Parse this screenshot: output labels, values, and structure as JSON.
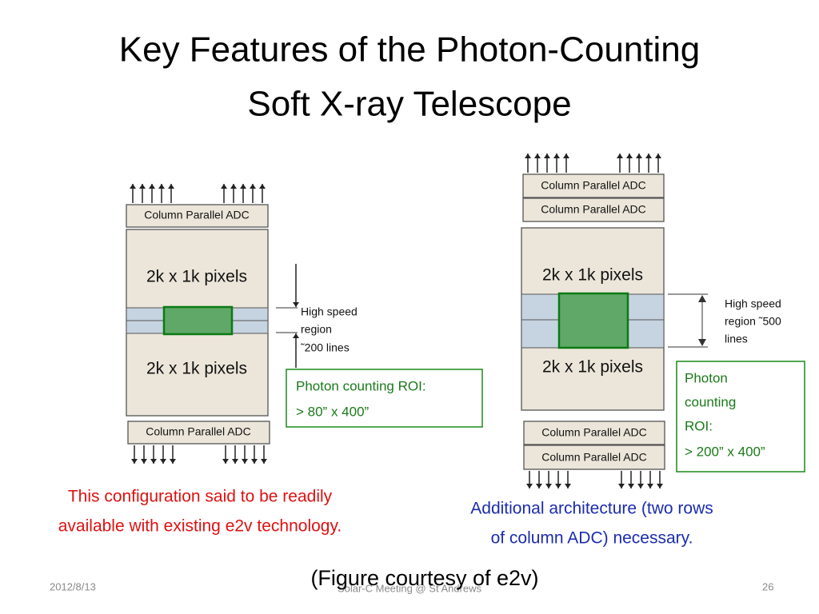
{
  "title": {
    "lines": [
      "Key Features of the Photon-Counting",
      "Soft X-ray Telescope"
    ]
  },
  "left_diagram": {
    "adc_top": "Column Parallel ADC",
    "pixels": [
      "2k x 1k pixels",
      "2k x 1k pixels"
    ],
    "adc_bottom": "Column Parallel ADC",
    "annotation": [
      "High speed",
      "region",
      "˜200 lines"
    ],
    "roi_box": [
      "Photon counting ROI:",
      "> 80” x 400”"
    ]
  },
  "right_diagram": {
    "adc_top": [
      "Column Parallel ADC",
      "Column Parallel ADC"
    ],
    "pixels": [
      "2k x 1k pixels",
      "2k x 1k pixels"
    ],
    "adc_bottom": [
      "Column Parallel ADC",
      "Column Parallel ADC"
    ],
    "annotation": [
      "High speed",
      "region ˜500",
      "lines"
    ],
    "roi_box": [
      "Photon",
      "counting",
      "ROI:",
      "> 200” x 400”"
    ]
  },
  "captions": {
    "left": [
      "This configuration said to be readily",
      "available with existing e2v technology."
    ],
    "right": [
      "Additional architecture (two rows",
      "of column ADC) necessary."
    ],
    "figure_credit": "(Figure courtesy of e2v)"
  },
  "footer": {
    "date": "2012/8/13",
    "center": "Solar-C Meeting @ St Andrews",
    "page": "26"
  }
}
